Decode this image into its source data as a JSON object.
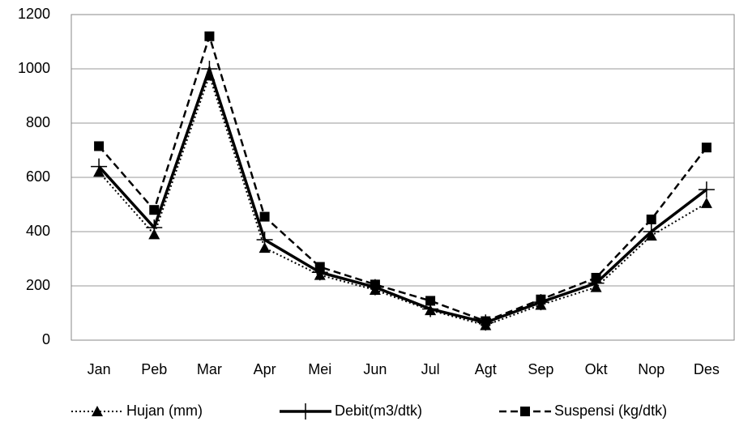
{
  "chart_data": {
    "type": "line",
    "categories": [
      "Jan",
      "Peb",
      "Mar",
      "Apr",
      "Mei",
      "Jun",
      "Jul",
      "Agt",
      "Sep",
      "Okt",
      "Nop",
      "Des"
    ],
    "series": [
      {
        "name": "Hujan (mm)",
        "color": "#000000",
        "line_style": "dotted",
        "marker": "triangle",
        "values": [
          620,
          390,
          975,
          340,
          240,
          185,
          110,
          55,
          130,
          195,
          385,
          505
        ]
      },
      {
        "name": "Debit(m3/dtk)",
        "color": "#000000",
        "line_style": "solid",
        "marker": "plus",
        "values": [
          640,
          415,
          1000,
          370,
          250,
          195,
          115,
          65,
          140,
          210,
          400,
          555
        ]
      },
      {
        "name": "Suspensi (kg/dtk)",
        "color": "#000000",
        "line_style": "dashed",
        "marker": "square",
        "values": [
          715,
          480,
          1120,
          455,
          270,
          205,
          145,
          70,
          150,
          230,
          445,
          710
        ]
      }
    ],
    "ylim": [
      0,
      1200
    ],
    "yticks": [
      0,
      200,
      400,
      600,
      800,
      1000,
      1200
    ],
    "grid": true,
    "legend": "bottom"
  }
}
